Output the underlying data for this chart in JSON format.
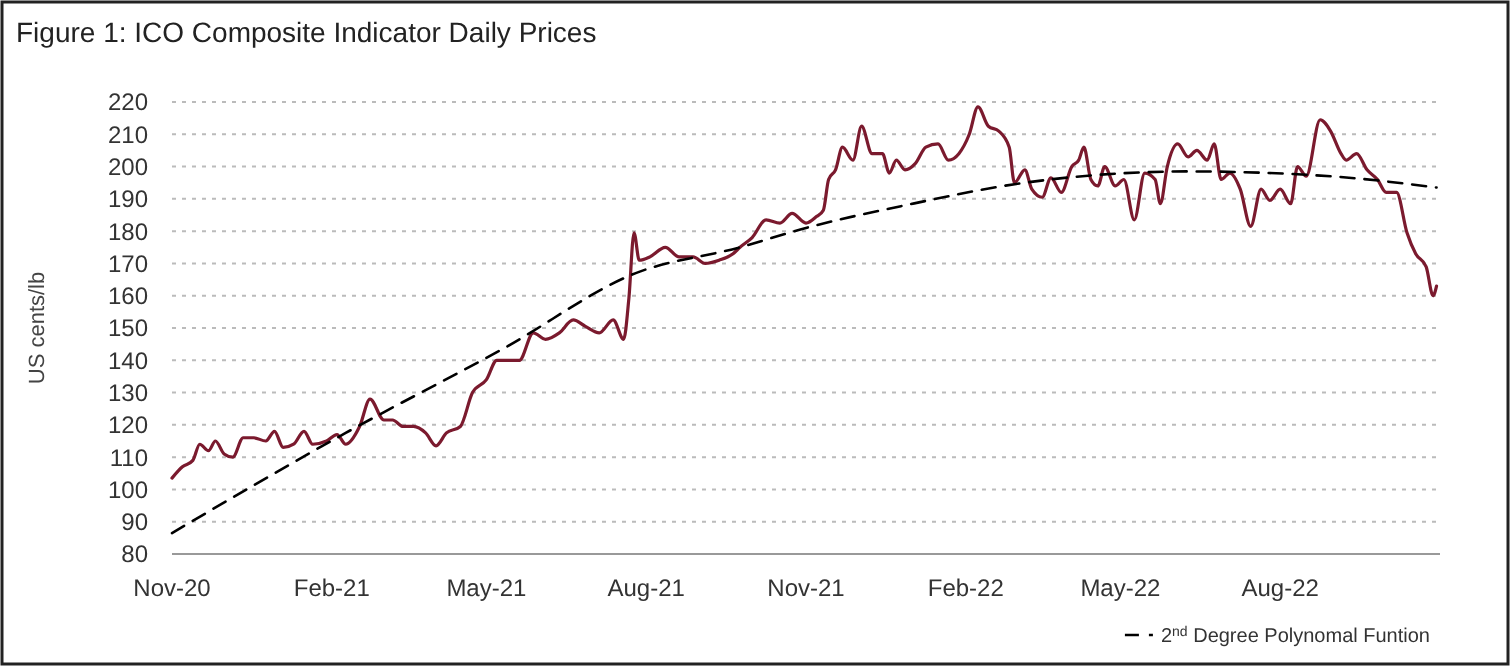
{
  "chart_data": {
    "type": "line",
    "title": "Figure 1: ICO Composite Indicator Daily Prices",
    "ylabel": "US cents/lb",
    "xlim": [
      "2020-11-01",
      "2022-11-01"
    ],
    "xticks": [
      {
        "value": "2020-11-01",
        "label": "Nov-20"
      },
      {
        "value": "2021-02-01",
        "label": "Feb-21"
      },
      {
        "value": "2021-05-01",
        "label": "May-21"
      },
      {
        "value": "2021-08-01",
        "label": "Aug-21"
      },
      {
        "value": "2021-11-01",
        "label": "Nov-21"
      },
      {
        "value": "2022-02-01",
        "label": "Feb-22"
      },
      {
        "value": "2022-05-01",
        "label": "May-22"
      },
      {
        "value": "2022-08-01",
        "label": "Aug-22"
      }
    ],
    "ylim": [
      80,
      220
    ],
    "yticks": [
      80,
      90,
      100,
      110,
      120,
      130,
      140,
      150,
      160,
      170,
      180,
      190,
      200,
      210,
      220
    ],
    "grid": "y",
    "legend": "bottom right",
    "series": [
      {
        "color": "#7b1a2e",
        "line_style": "solid",
        "x": [
          "2020-11-01",
          "2020-11-07",
          "2020-11-13",
          "2020-11-17",
          "2020-11-22",
          "2020-11-26",
          "2020-12-01",
          "2020-12-06",
          "2020-12-12",
          "2020-12-18",
          "2020-12-25",
          "2020-12-30",
          "2021-01-04",
          "2021-01-10",
          "2021-01-16",
          "2021-01-21",
          "2021-01-29",
          "2021-02-04",
          "2021-02-09",
          "2021-02-17",
          "2021-02-23",
          "2021-03-03",
          "2021-03-08",
          "2021-03-14",
          "2021-03-20",
          "2021-03-27",
          "2021-04-02",
          "2021-04-08",
          "2021-04-16",
          "2021-04-23",
          "2021-05-01",
          "2021-05-07",
          "2021-05-12",
          "2021-05-20",
          "2021-05-28",
          "2021-06-04",
          "2021-06-12",
          "2021-06-20",
          "2021-06-27",
          "2021-07-05",
          "2021-07-13",
          "2021-07-19",
          "2021-07-22",
          "2021-07-25",
          "2021-07-28",
          "2021-08-03",
          "2021-08-12",
          "2021-08-20",
          "2021-08-28",
          "2021-09-04",
          "2021-09-12",
          "2021-09-20",
          "2021-09-24",
          "2021-10-01",
          "2021-10-09",
          "2021-10-17",
          "2021-10-24",
          "2021-11-01",
          "2021-11-07",
          "2021-11-11",
          "2021-11-14",
          "2021-11-18",
          "2021-11-22",
          "2021-11-28",
          "2021-12-03",
          "2021-12-09",
          "2021-12-15",
          "2021-12-19",
          "2021-12-23",
          "2021-12-28",
          "2022-01-03",
          "2022-01-09",
          "2022-01-16",
          "2022-01-22",
          "2022-01-28",
          "2022-02-03",
          "2022-02-08",
          "2022-02-14",
          "2022-02-20",
          "2022-02-26",
          "2022-03-01",
          "2022-03-07",
          "2022-03-11",
          "2022-03-17",
          "2022-03-22",
          "2022-03-28",
          "2022-04-03",
          "2022-04-07",
          "2022-04-10",
          "2022-04-14",
          "2022-04-18",
          "2022-04-22",
          "2022-04-28",
          "2022-05-03",
          "2022-05-09",
          "2022-05-15",
          "2022-05-21",
          "2022-05-24",
          "2022-05-28",
          "2022-06-03",
          "2022-06-09",
          "2022-06-14",
          "2022-06-20",
          "2022-06-24",
          "2022-06-28",
          "2022-07-03",
          "2022-07-09",
          "2022-07-15",
          "2022-07-21",
          "2022-07-26",
          "2022-08-01",
          "2022-08-07",
          "2022-08-11",
          "2022-08-16",
          "2022-08-24",
          "2022-08-30",
          "2022-09-05",
          "2022-09-08",
          "2022-09-14",
          "2022-09-20",
          "2022-09-26",
          "2022-10-01",
          "2022-10-07",
          "2022-10-13",
          "2022-10-18",
          "2022-10-24",
          "2022-10-28",
          "2022-10-30"
        ],
        "values": [
          103.5,
          107,
          109,
          114,
          112,
          115,
          111,
          110,
          116,
          116,
          115,
          118,
          113,
          114,
          118,
          114,
          115,
          117,
          114,
          119.5,
          128,
          121.5,
          121.5,
          119.5,
          119.5,
          117.5,
          113.5,
          117.5,
          119.5,
          130,
          134,
          140,
          140,
          140,
          148.5,
          146.5,
          148.5,
          152.5,
          150.5,
          148.5,
          152.5,
          146.5,
          159,
          179.5,
          171,
          172,
          175,
          172,
          172,
          170,
          171,
          173,
          175,
          178,
          183.5,
          182.5,
          185.5,
          182.5,
          184.5,
          186.5,
          196,
          199,
          206,
          202,
          212.5,
          204,
          204,
          198,
          202,
          199,
          201,
          206,
          207,
          202,
          204,
          210,
          218.5,
          212.5,
          211,
          206,
          195,
          199,
          193,
          190.5,
          196.5,
          192,
          200,
          202,
          206,
          196,
          194,
          200,
          194,
          196,
          183.5,
          198,
          196,
          188.5,
          200,
          207,
          203,
          205,
          202,
          207,
          196,
          198,
          193,
          181.5,
          193,
          189.5,
          193,
          188.5,
          200,
          197,
          214.5,
          211,
          204,
          202,
          204,
          199,
          196,
          192,
          192,
          179.5,
          173,
          169,
          160,
          163
        ]
      },
      {
        "name": "2$^{nd}$ Degree Polynomal Funtion",
        "color": "#000000",
        "line_style": "dashed",
        "x": [
          "2020-11-01",
          "2021-02-09",
          "2021-05-12",
          "2021-07-26",
          "2021-09-24",
          "2021-11-01",
          "2021-12-28",
          "2022-03-07",
          "2022-06-09",
          "2022-08-30",
          "2022-10-30"
        ],
        "values": [
          86.5,
          117.5,
          144,
          167,
          175,
          181,
          188,
          195,
          198.5,
          197,
          193.5
        ]
      }
    ]
  }
}
